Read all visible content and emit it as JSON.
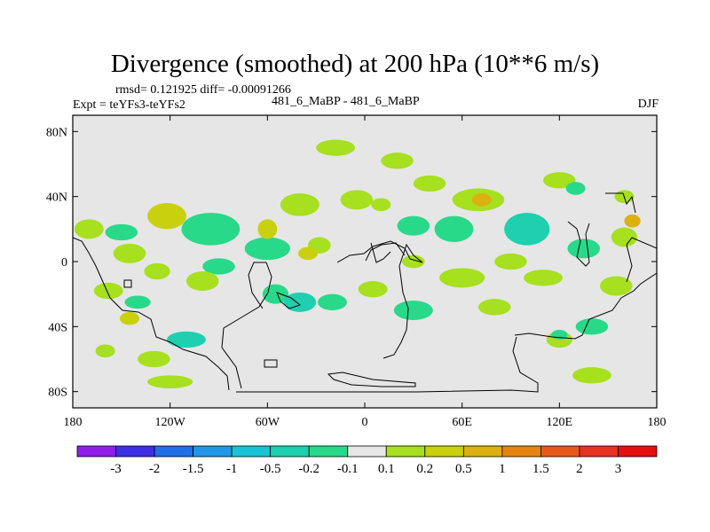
{
  "title": "Divergence (smoothed) at 200 hPa (10**6 m/s)",
  "stats": {
    "rmsd_label": "rmsd= 0.121925  diff= -0.00091266"
  },
  "left_label": "Expt = teYFs3-teYFs2",
  "center_label": "481_6_MaBP - 481_6_MaBP",
  "right_label": "DJF",
  "chart_data": {
    "type": "heatmap",
    "projection": "cylindrical-equidistant",
    "lon_range": [
      -180,
      180
    ],
    "lat_range": [
      -90,
      90
    ],
    "x_ticks": [
      {
        "lon": -180,
        "label": "180"
      },
      {
        "lon": -120,
        "label": "120W"
      },
      {
        "lon": -60,
        "label": "60W"
      },
      {
        "lon": 0,
        "label": "0"
      },
      {
        "lon": 60,
        "label": "60E"
      },
      {
        "lon": 120,
        "label": "120E"
      },
      {
        "lon": 180,
        "label": "180"
      }
    ],
    "y_ticks": [
      {
        "lat": 80,
        "label": "80N"
      },
      {
        "lat": 40,
        "label": "40N"
      },
      {
        "lat": 0,
        "label": "0"
      },
      {
        "lat": -40,
        "label": "40S"
      },
      {
        "lat": -80,
        "label": "80S"
      }
    ],
    "contour_levels": [
      -3,
      -2,
      -1.5,
      -1,
      -0.5,
      -0.2,
      -0.1,
      0.1,
      0.2,
      0.5,
      1,
      1.5,
      2,
      3
    ],
    "level_labels": [
      "-3",
      "-2",
      "-1.5",
      "-1",
      "-0.5",
      "-0.2",
      "-0.1",
      "0.1",
      "0.2",
      "0.5",
      "1",
      "1.5",
      "2",
      "3"
    ],
    "colors": [
      "#8f1fe8",
      "#3c2fe6",
      "#1f6fe6",
      "#1f97e6",
      "#19c3d6",
      "#1fd0b0",
      "#28d98a",
      "#e6e6e6",
      "#a6e01f",
      "#c9d10f",
      "#dcb00f",
      "#e6840f",
      "#e6591a",
      "#e6331f",
      "#e60f0f"
    ],
    "features": [
      {
        "lon": -122,
        "lat": 28,
        "rx": 12,
        "ry": 8,
        "v": 0.3
      },
      {
        "lon": -145,
        "lat": 5,
        "rx": 10,
        "ry": 6,
        "v": 0.15
      },
      {
        "lon": -170,
        "lat": 20,
        "rx": 9,
        "ry": 6,
        "v": 0.15
      },
      {
        "lon": -150,
        "lat": 18,
        "rx": 10,
        "ry": 5,
        "v": -0.15
      },
      {
        "lon": -95,
        "lat": 20,
        "rx": 18,
        "ry": 10,
        "v": -0.15
      },
      {
        "lon": -60,
        "lat": 8,
        "rx": 14,
        "ry": 7,
        "v": -0.15
      },
      {
        "lon": -90,
        "lat": -3,
        "rx": 10,
        "ry": 5,
        "v": -0.15
      },
      {
        "lon": -100,
        "lat": -12,
        "rx": 10,
        "ry": 6,
        "v": 0.15
      },
      {
        "lon": -128,
        "lat": -6,
        "rx": 8,
        "ry": 5,
        "v": 0.15
      },
      {
        "lon": -158,
        "lat": -18,
        "rx": 9,
        "ry": 5,
        "v": 0.15
      },
      {
        "lon": -55,
        "lat": -20,
        "rx": 8,
        "ry": 6,
        "v": -0.15
      },
      {
        "lon": -40,
        "lat": -25,
        "rx": 10,
        "ry": 6,
        "v": -0.3
      },
      {
        "lon": -20,
        "lat": -25,
        "rx": 9,
        "ry": 5,
        "v": -0.15
      },
      {
        "lon": 5,
        "lat": -17,
        "rx": 9,
        "ry": 5,
        "v": 0.15
      },
      {
        "lon": -60,
        "lat": 20,
        "rx": 6,
        "ry": 6,
        "v": 0.3
      },
      {
        "lon": -40,
        "lat": 35,
        "rx": 12,
        "ry": 7,
        "v": 0.15
      },
      {
        "lon": -5,
        "lat": 38,
        "rx": 10,
        "ry": 6,
        "v": 0.15
      },
      {
        "lon": -28,
        "lat": 10,
        "rx": 7,
        "ry": 5,
        "v": 0.15
      },
      {
        "lon": -110,
        "lat": -48,
        "rx": 12,
        "ry": 5,
        "v": -0.3
      },
      {
        "lon": -130,
        "lat": -60,
        "rx": 10,
        "ry": 5,
        "v": 0.15
      },
      {
        "lon": -120,
        "lat": -74,
        "rx": 14,
        "ry": 4,
        "v": 0.15
      },
      {
        "lon": -145,
        "lat": -35,
        "rx": 6,
        "ry": 4,
        "v": 0.3
      },
      {
        "lon": -18,
        "lat": 70,
        "rx": 12,
        "ry": 5,
        "v": 0.15
      },
      {
        "lon": 20,
        "lat": 62,
        "rx": 10,
        "ry": 5,
        "v": 0.15
      },
      {
        "lon": -35,
        "lat": 5,
        "rx": 6,
        "ry": 4,
        "v": 0.3
      },
      {
        "lon": 70,
        "lat": 38,
        "rx": 16,
        "ry": 7,
        "v": 0.15
      },
      {
        "lon": 72,
        "lat": 38,
        "rx": 6,
        "ry": 4,
        "v": 0.5
      },
      {
        "lon": 30,
        "lat": 22,
        "rx": 10,
        "ry": 6,
        "v": -0.15
      },
      {
        "lon": 55,
        "lat": 20,
        "rx": 12,
        "ry": 8,
        "v": -0.15
      },
      {
        "lon": 100,
        "lat": 20,
        "rx": 14,
        "ry": 10,
        "v": -0.3
      },
      {
        "lon": 135,
        "lat": 8,
        "rx": 10,
        "ry": 6,
        "v": -0.15
      },
      {
        "lon": 90,
        "lat": 0,
        "rx": 10,
        "ry": 5,
        "v": 0.15
      },
      {
        "lon": 30,
        "lat": 0,
        "rx": 7,
        "ry": 4,
        "v": 0.15
      },
      {
        "lon": 60,
        "lat": -10,
        "rx": 14,
        "ry": 6,
        "v": 0.15
      },
      {
        "lon": 110,
        "lat": -10,
        "rx": 12,
        "ry": 5,
        "v": 0.15
      },
      {
        "lon": 155,
        "lat": -15,
        "rx": 10,
        "ry": 6,
        "v": 0.15
      },
      {
        "lon": 160,
        "lat": 15,
        "rx": 8,
        "ry": 6,
        "v": 0.15
      },
      {
        "lon": 165,
        "lat": 25,
        "rx": 5,
        "ry": 4,
        "v": 0.5
      },
      {
        "lon": 30,
        "lat": -30,
        "rx": 12,
        "ry": 6,
        "v": -0.15
      },
      {
        "lon": 80,
        "lat": -28,
        "rx": 10,
        "ry": 5,
        "v": 0.15
      },
      {
        "lon": 140,
        "lat": -40,
        "rx": 10,
        "ry": 5,
        "v": -0.15
      },
      {
        "lon": 120,
        "lat": -48,
        "rx": 8,
        "ry": 5,
        "v": 0.15
      },
      {
        "lon": 120,
        "lat": -45,
        "rx": 5,
        "ry": 3,
        "v": -0.15
      },
      {
        "lon": 140,
        "lat": -70,
        "rx": 12,
        "ry": 5,
        "v": 0.15
      },
      {
        "lon": 40,
        "lat": 48,
        "rx": 10,
        "ry": 5,
        "v": 0.15
      },
      {
        "lon": 10,
        "lat": 35,
        "rx": 6,
        "ry": 4,
        "v": 0.15
      },
      {
        "lon": 160,
        "lat": 40,
        "rx": 6,
        "ry": 4,
        "v": 0.15
      },
      {
        "lon": 120,
        "lat": 50,
        "rx": 10,
        "ry": 5,
        "v": 0.15
      },
      {
        "lon": 130,
        "lat": 45,
        "rx": 6,
        "ry": 4,
        "v": -0.15
      },
      {
        "lon": -160,
        "lat": -55,
        "rx": 6,
        "ry": 4,
        "v": 0.15
      },
      {
        "lon": -140,
        "lat": -25,
        "rx": 8,
        "ry": 4,
        "v": -0.15
      }
    ]
  }
}
